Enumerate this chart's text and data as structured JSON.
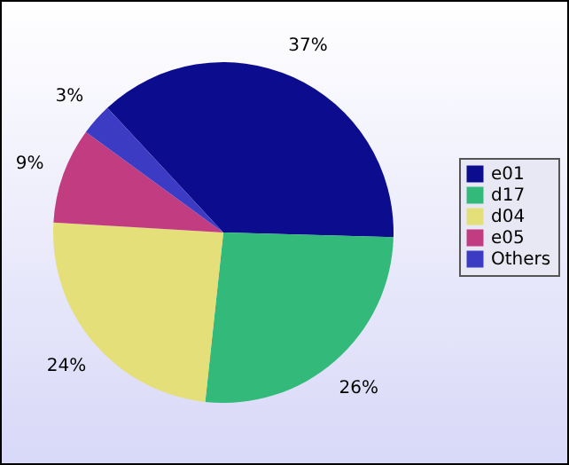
{
  "chart_data": {
    "type": "pie",
    "categories": [
      "e01",
      "d17",
      "d04",
      "e05",
      "Others"
    ],
    "values": [
      37,
      26,
      24,
      9,
      3
    ],
    "value_labels": [
      "37%",
      "26%",
      "24%",
      "9%",
      "3%"
    ],
    "colors": [
      "#0c0c8e",
      "#33b97a",
      "#e4df78",
      "#c23c82",
      "#3b3bc4"
    ],
    "legend": "right"
  }
}
